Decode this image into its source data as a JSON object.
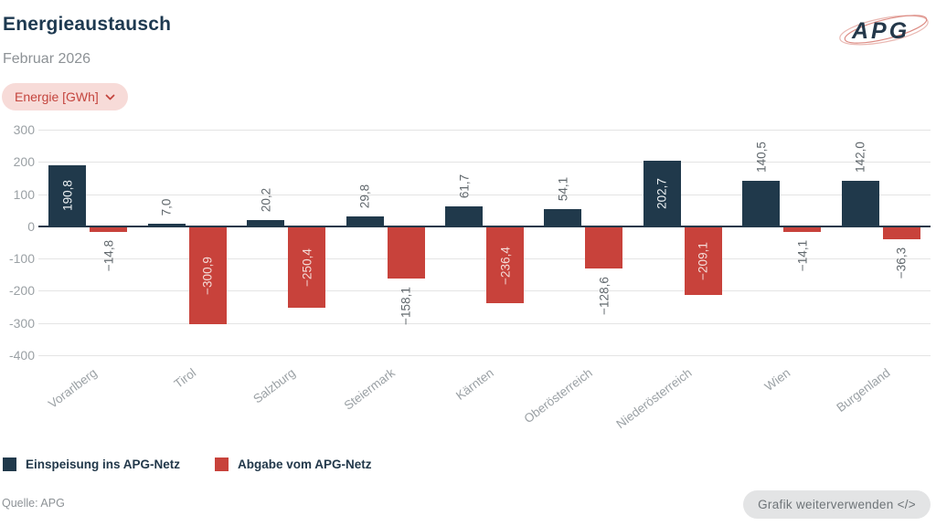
{
  "header": {
    "title": "Energieaustausch",
    "subtitle": "Februar 2026",
    "unit_label": "Energie [GWh]",
    "logo_text": "APG"
  },
  "chart_data": {
    "type": "bar",
    "categories": [
      "Vorarlberg",
      "Tirol",
      "Salzburg",
      "Steiermark",
      "Kärnten",
      "Oberösterreich",
      "Niederösterreich",
      "Wien",
      "Burgenland"
    ],
    "series": [
      {
        "name": "Einspeisung ins APG-Netz",
        "color": "#20394b",
        "inside_label_color": "#edf1f3",
        "values": [
          190.8,
          7.0,
          20.2,
          29.8,
          61.7,
          54.1,
          202.7,
          140.5,
          142.0
        ],
        "labels": [
          "190,8",
          "7,0",
          "20,2",
          "29,8",
          "61,7",
          "54,1",
          "202,7",
          "140,5",
          "142,0"
        ],
        "label_inside": [
          true,
          false,
          false,
          false,
          false,
          false,
          true,
          false,
          false
        ]
      },
      {
        "name": "Abgabe vom APG-Netz",
        "color": "#c8423b",
        "inside_label_color": "#f4ddd9",
        "values": [
          -14.8,
          -300.9,
          -250.4,
          -158.1,
          -236.4,
          -128.6,
          -209.1,
          -14.1,
          -36.3
        ],
        "labels": [
          "−14,8",
          "−300,9",
          "−250,4",
          "−158,1",
          "−236,4",
          "−128,6",
          "−209,1",
          "−14,1",
          "−36,3"
        ],
        "label_inside": [
          false,
          true,
          true,
          false,
          true,
          false,
          true,
          false,
          false
        ]
      }
    ],
    "ylim": [
      -400,
      300
    ],
    "ytick_values": [
      300,
      200,
      100,
      0,
      -100,
      -200,
      -300,
      -400
    ],
    "ytick_labels": [
      "300",
      "200",
      "100",
      "0",
      "-100",
      "-200",
      "-300",
      "-400"
    ],
    "outside_label_color": "#61686d",
    "grid": true,
    "legend_position": "bottom"
  },
  "footer": {
    "source": "Quelle: APG",
    "reuse_label": "Grafik weiterverwenden </>"
  }
}
